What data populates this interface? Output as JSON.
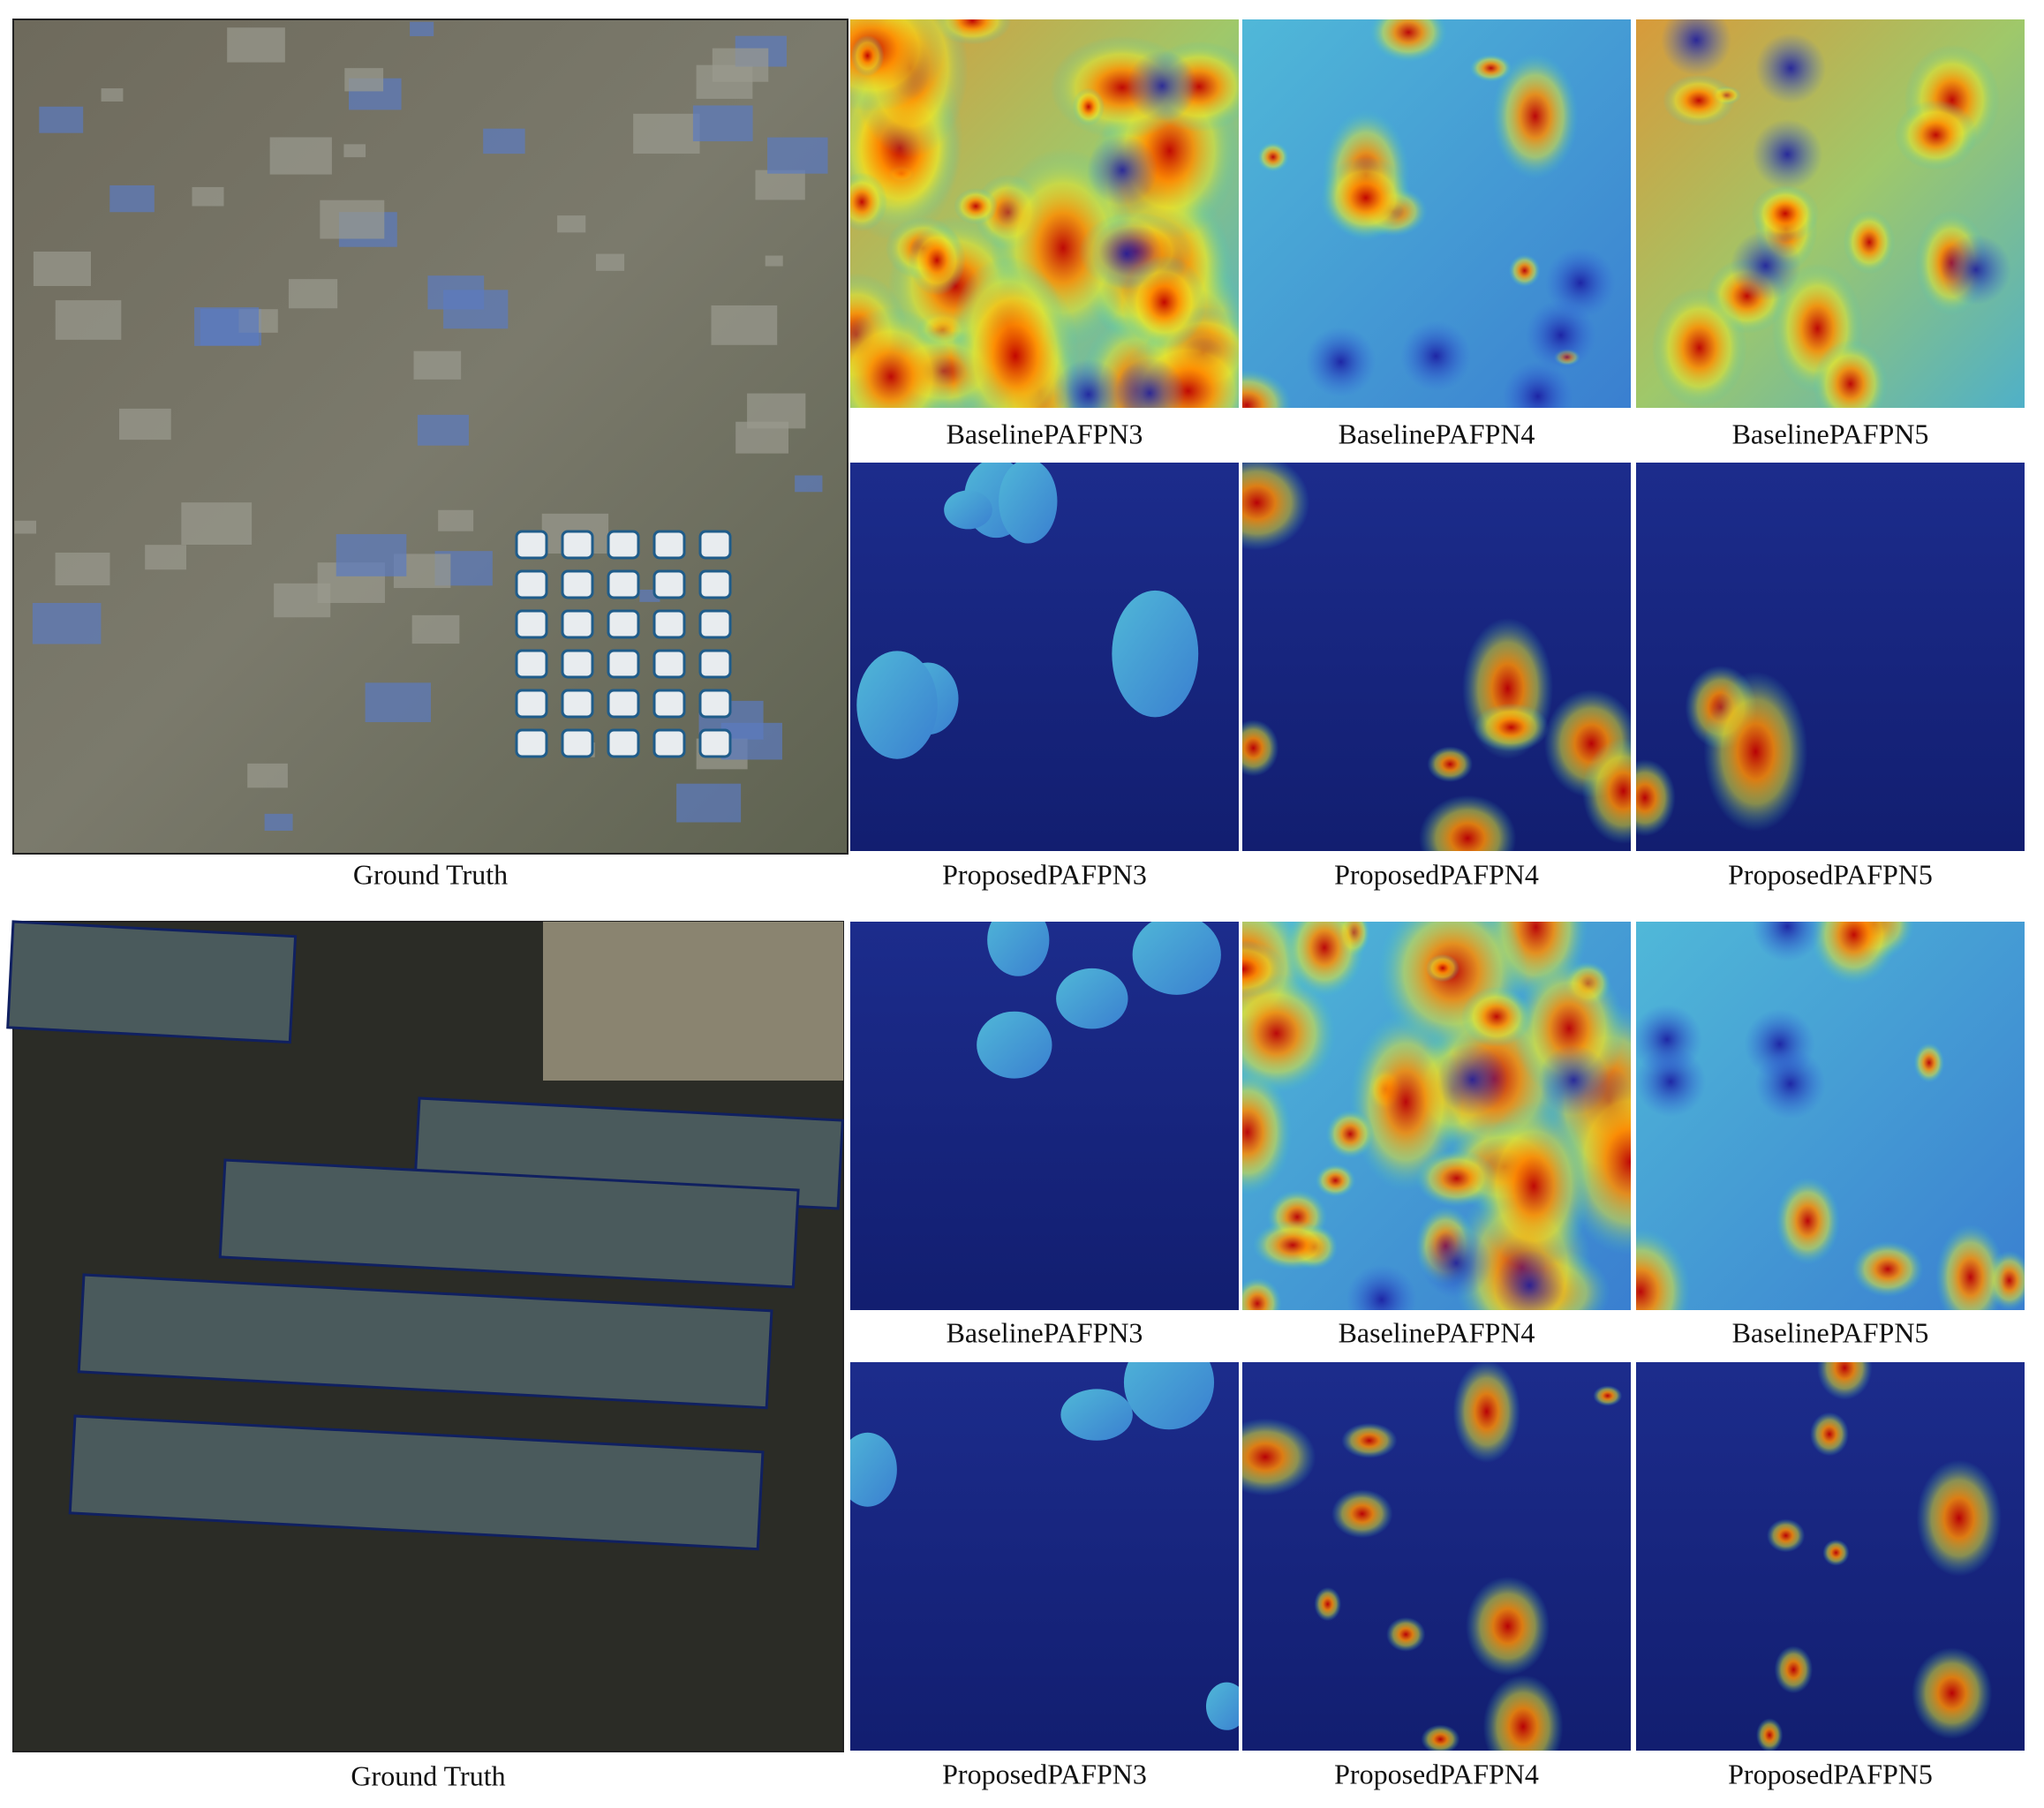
{
  "figure": {
    "panels": [
      {
        "ground_truth": "Ground Truth",
        "rows": [
          [
            "BaselinePAFPN3",
            "BaselinePAFPN4",
            "BaselinePAFPN5"
          ],
          [
            "ProposedPAFPN3",
            "ProposedPAFPN4",
            "ProposedPAFPN5"
          ]
        ]
      },
      {
        "ground_truth": "Ground Truth",
        "rows": [
          [
            "BaselinePAFPN3",
            "BaselinePAFPN4",
            "BaselinePAFPN5"
          ],
          [
            "ProposedPAFPN3",
            "ProposedPAFPN4",
            "ProposedPAFPN5"
          ]
        ]
      }
    ]
  }
}
